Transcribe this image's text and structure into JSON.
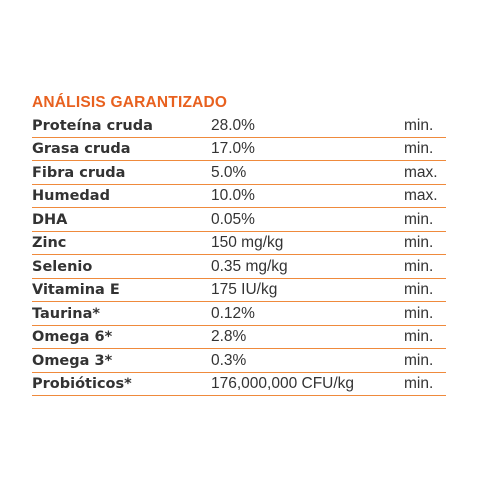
{
  "analysis": {
    "title": "ANÁLISIS GARANTIZADO",
    "rows": [
      {
        "nutrient": "Proteína cruda",
        "amount": "28.0%",
        "qualifier": "min."
      },
      {
        "nutrient": "Grasa cruda",
        "amount": "17.0%",
        "qualifier": "min."
      },
      {
        "nutrient": "Fibra cruda",
        "amount": "5.0%",
        "qualifier": "max."
      },
      {
        "nutrient": "Humedad",
        "amount": "10.0%",
        "qualifier": "max."
      },
      {
        "nutrient": "DHA",
        "amount": "0.05%",
        "qualifier": "min."
      },
      {
        "nutrient": "Zinc",
        "amount": "150 mg/kg",
        "qualifier": "min."
      },
      {
        "nutrient": "Selenio",
        "amount": "0.35 mg/kg",
        "qualifier": "min."
      },
      {
        "nutrient": "Vitamina E",
        "amount": "175 IU/kg",
        "qualifier": "min."
      },
      {
        "nutrient": "Taurina*",
        "amount": "0.12%",
        "qualifier": "min."
      },
      {
        "nutrient": "Omega 6*",
        "amount": "2.8%",
        "qualifier": "min."
      },
      {
        "nutrient": "Omega 3*",
        "amount": "0.3%",
        "qualifier": "min."
      },
      {
        "nutrient": "Probióticos*",
        "amount": "176,000,000 CFU/kg",
        "qualifier": "min."
      }
    ]
  },
  "colors": {
    "heading": "#e8611f",
    "rule": "#ef8a3c",
    "text": "#333333"
  }
}
